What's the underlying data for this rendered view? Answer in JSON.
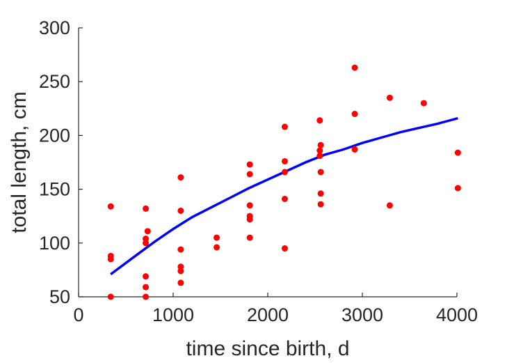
{
  "chart_data": {
    "type": "scatter",
    "title": "",
    "xlabel": "time since birth, d",
    "ylabel": "total length, cm",
    "xlim": [
      0,
      4000
    ],
    "ylim": [
      50,
      300
    ],
    "xticks": [
      0,
      1000,
      2000,
      3000,
      4000
    ],
    "yticks": [
      50,
      100,
      150,
      200,
      250,
      300
    ],
    "grid": false,
    "series": [
      {
        "type": "scatter",
        "color": "#ff0000",
        "points": [
          [
            340,
            134
          ],
          [
            340,
            88
          ],
          [
            340,
            85
          ],
          [
            340,
            50
          ],
          [
            710,
            132
          ],
          [
            710,
            104
          ],
          [
            710,
            100
          ],
          [
            710,
            69
          ],
          [
            710,
            59
          ],
          [
            710,
            50
          ],
          [
            730,
            111
          ],
          [
            1080,
            161
          ],
          [
            1080,
            130
          ],
          [
            1080,
            94
          ],
          [
            1080,
            78
          ],
          [
            1080,
            74
          ],
          [
            1080,
            63
          ],
          [
            1460,
            105
          ],
          [
            1460,
            96
          ],
          [
            1810,
            173
          ],
          [
            1810,
            164
          ],
          [
            1810,
            135
          ],
          [
            1810,
            125
          ],
          [
            1810,
            122
          ],
          [
            1810,
            105
          ],
          [
            2180,
            208
          ],
          [
            2180,
            176
          ],
          [
            2180,
            166
          ],
          [
            2180,
            141
          ],
          [
            2180,
            95
          ],
          [
            2550,
            214
          ],
          [
            2560,
            191
          ],
          [
            2550,
            186
          ],
          [
            2550,
            181
          ],
          [
            2560,
            166
          ],
          [
            2560,
            146
          ],
          [
            2560,
            136
          ],
          [
            2920,
            263
          ],
          [
            2920,
            220
          ],
          [
            2920,
            187
          ],
          [
            3290,
            235
          ],
          [
            3290,
            135
          ],
          [
            3650,
            230
          ],
          [
            4010,
            184
          ],
          [
            4010,
            151
          ]
        ]
      },
      {
        "type": "line",
        "color": "#0000ff",
        "points": [
          [
            340,
            71
          ],
          [
            600,
            88
          ],
          [
            800,
            101
          ],
          [
            1000,
            113
          ],
          [
            1200,
            124
          ],
          [
            1400,
            133
          ],
          [
            1600,
            142
          ],
          [
            1800,
            151
          ],
          [
            2000,
            159
          ],
          [
            2200,
            167
          ],
          [
            2400,
            175
          ],
          [
            2600,
            182
          ],
          [
            2800,
            187
          ],
          [
            3000,
            193
          ],
          [
            3200,
            198
          ],
          [
            3400,
            203
          ],
          [
            3600,
            207
          ],
          [
            3800,
            211
          ],
          [
            4010,
            216
          ]
        ]
      }
    ]
  }
}
